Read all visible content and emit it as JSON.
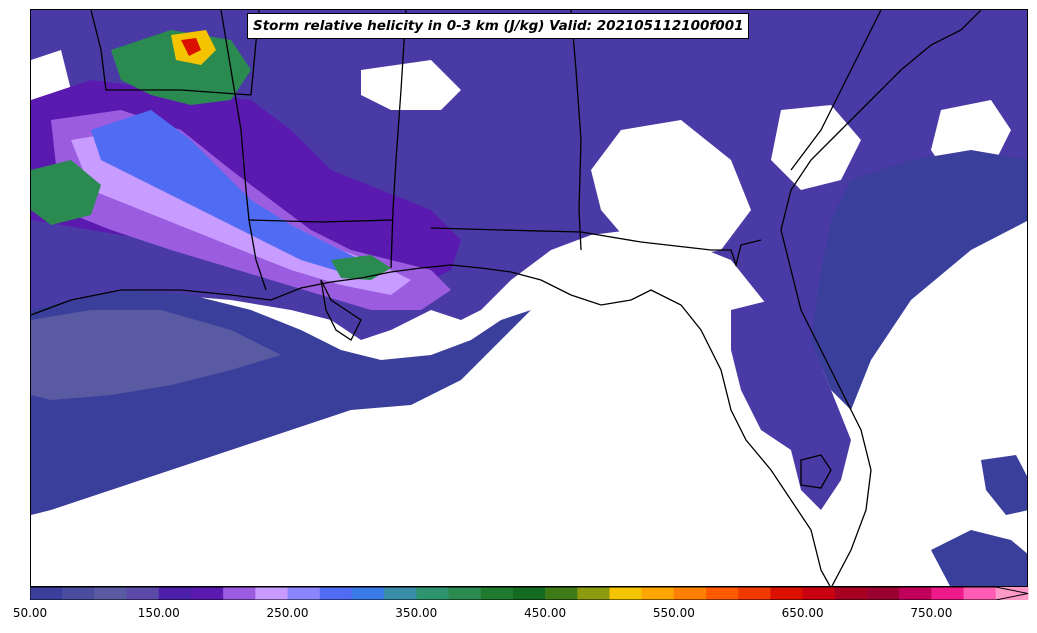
{
  "title": "Storm relative helicity in 0-3 km (J/kg) Valid: 202105112100f001",
  "colorbar": {
    "ticks": [
      "50.00",
      "150.00",
      "250.00",
      "350.00",
      "450.00",
      "550.00",
      "650.00",
      "750.00"
    ],
    "min": 50,
    "max": 800,
    "step": 25,
    "extend": "max",
    "colors": [
      "#3b3f9c",
      "#4a4d9e",
      "#5a5aa3",
      "#5b4aa8",
      "#4b1fa8",
      "#5a1ab0",
      "#9b5ce0",
      "#c79bff",
      "#8b86ff",
      "#4f6cf2",
      "#3a7ae6",
      "#3a8ea8",
      "#2e9470",
      "#2a8a50",
      "#1f7a2e",
      "#146a20",
      "#3e7a16",
      "#8c9a10",
      "#f5c400",
      "#ffa500",
      "#ff8000",
      "#ff5a00",
      "#f03a00",
      "#dc1000",
      "#c80010",
      "#a80020",
      "#9a0030",
      "#c0005a",
      "#ef1a8a",
      "#ff5cb4",
      "#ff9ac8"
    ]
  },
  "legend_colors_note_hidden": "",
  "region": "Southeastern United States and Gulf of Mexico"
}
